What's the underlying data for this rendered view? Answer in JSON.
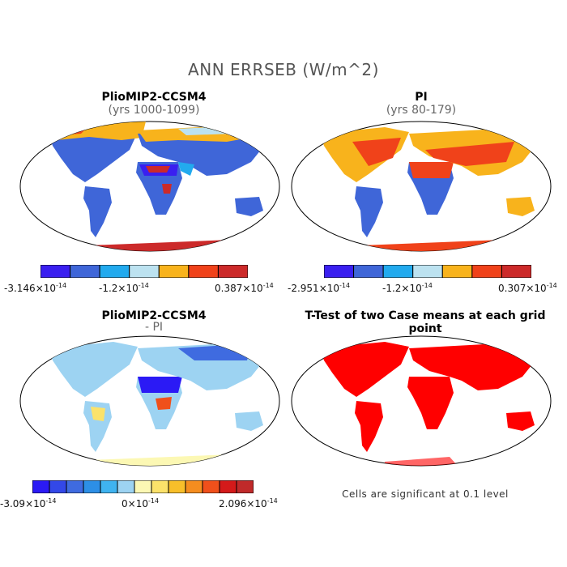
{
  "title": "ANN ERRSEB (W/m^2)",
  "panels": [
    {
      "title": "PlioMIP2-CCSM4",
      "subtitle": "(yrs 1000-1099)"
    },
    {
      "title": "PI",
      "subtitle": "(yrs 80-179)"
    },
    {
      "title": "PlioMIP2-CCSM4",
      "subtitle": "- PI"
    },
    {
      "title": "T-Test of two Case means at each grid point",
      "note": "Cells are significant at 0.1 level"
    }
  ],
  "colorbars": {
    "c1": {
      "colors": [
        "#3a1ff0",
        "#3f66d8",
        "#22aaee",
        "#bce2f0",
        "#f8b31c",
        "#f0421a",
        "#cc2a2a"
      ],
      "min_mant": "-3.146",
      "mid_mant": "-1.2",
      "max_mant": "0.387"
    },
    "c2": {
      "colors": [
        "#3a1ff0",
        "#3f66d8",
        "#22aaee",
        "#bce2f0",
        "#f8b31c",
        "#f0421a",
        "#cc2a2a"
      ],
      "min_mant": "-2.951",
      "mid_mant": "-1.2",
      "max_mant": "0.307"
    },
    "c3": {
      "colors": [
        "#2b1af5",
        "#3348e8",
        "#3f6be0",
        "#2d8fe6",
        "#3fb3f0",
        "#9dd3f2",
        "#fcf8b4",
        "#fbe26a",
        "#f8bf2a",
        "#f58d1f",
        "#f0501b",
        "#d41a1a",
        "#c02a2a"
      ],
      "min_mant": "-3.09",
      "mid_mant": "0",
      "max_mant": "2.096"
    },
    "exponent_base": "×10",
    "exponent": "-14"
  },
  "map_colors": {
    "ocean": "#ffffff",
    "border": "#000000",
    "ttest": "#ff0000"
  }
}
